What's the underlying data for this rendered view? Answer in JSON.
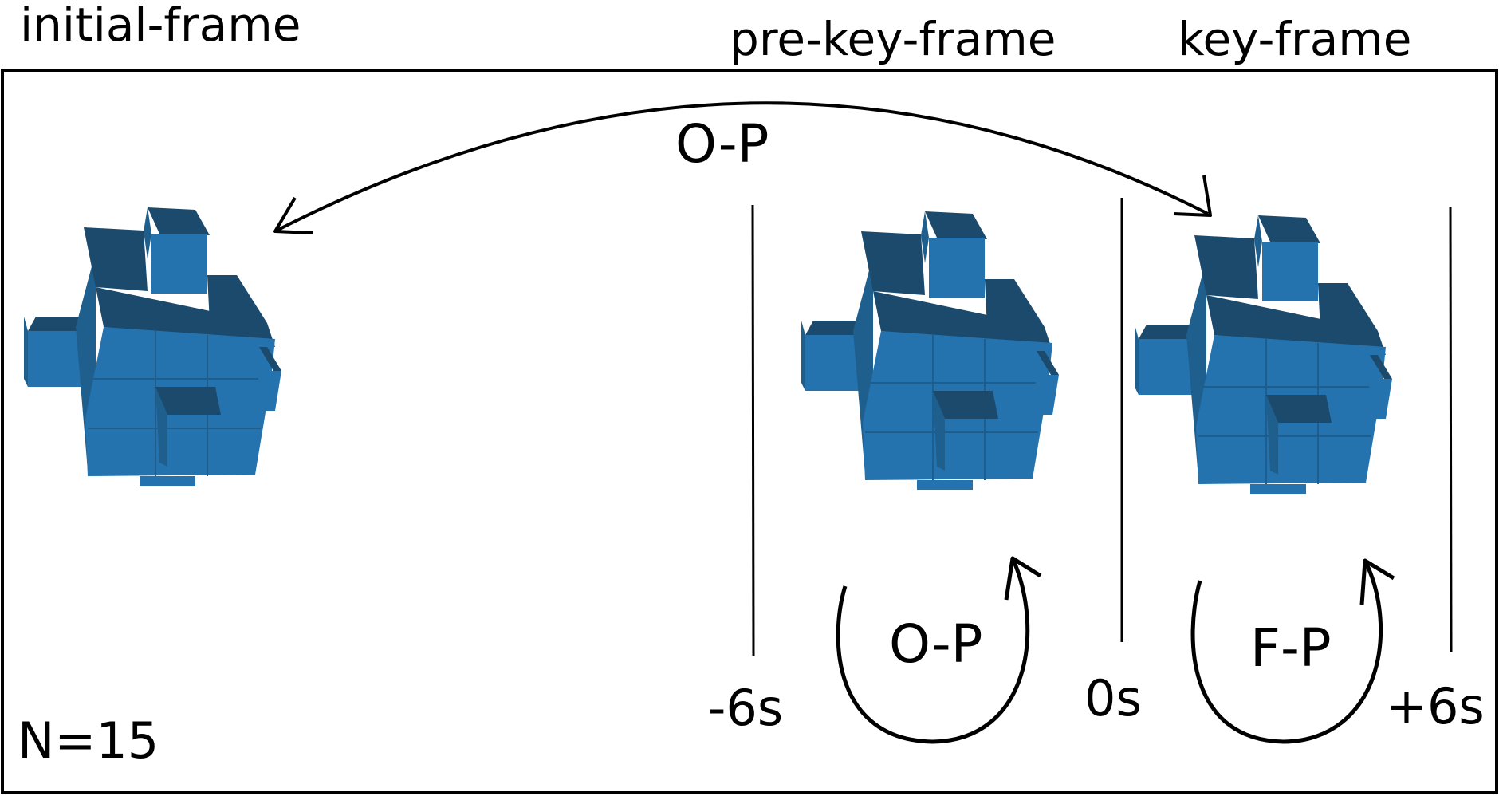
{
  "labels": {
    "initial_frame": "initial-frame",
    "pre_key_frame": "pre-key-frame",
    "key_frame": "key-frame",
    "top_arrow": "O-P",
    "loop_left": "O-P",
    "loop_right": "F-P",
    "n_count": "N=15"
  },
  "timeline": {
    "minus": "-6s",
    "zero": "0s",
    "plus": "+6s"
  },
  "colors": {
    "cube_front": "#2473ae",
    "cube_top": "#1b4a6d",
    "cube_side": "#1f5f8e",
    "cube_edge": "#1e5d8c",
    "stroke": "#000000"
  }
}
